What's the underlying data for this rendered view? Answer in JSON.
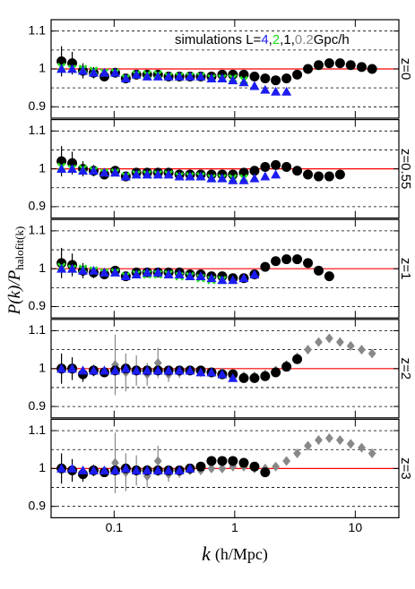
{
  "figure": {
    "xlabel": {
      "symbol": "k",
      "unit": "(h/Mpc)"
    },
    "ylabel": {
      "main": "P(k)/P",
      "sub": "halofit(k)"
    },
    "xlim": [
      0.03,
      23
    ],
    "xscale": "log",
    "xticks": [
      0.1,
      1,
      10
    ],
    "ylim": [
      0.87,
      1.13
    ],
    "yticks": [
      0.9,
      1,
      1.1
    ],
    "grid_lines": [
      0.9,
      0.95,
      1.05,
      1.1
    ],
    "reference": 1,
    "reference_color": "#ff0000",
    "legend": {
      "prefix": "simulations  L=",
      "separator": ",",
      "suffix": "Gpc/h",
      "entries": [
        {
          "name": "4",
          "color": "#1c1cf0",
          "marker": "triangle"
        },
        {
          "name": "2",
          "color": "#22dd22",
          "marker": "cross"
        },
        {
          "name": "1",
          "color": "#000000",
          "marker": "circle"
        },
        {
          "name": "0.2",
          "color": "#888888",
          "marker": "diamond"
        }
      ]
    }
  },
  "chart_data": [
    {
      "type": "scatter",
      "label": "z=0",
      "series": [
        {
          "sim": 2,
          "x": [
            0.0366,
            0.0449,
            0.0551,
            0.0676,
            0.083,
            0.102,
            0.125,
            0.153,
            0.188,
            0.231,
            0.283,
            0.348,
            0.426,
            0.523,
            0.642,
            0.788,
            0.966,
            1.19,
            1.46,
            1.79,
            2.19,
            2.69,
            3.3,
            4.05,
            4.97,
            6.09,
            7.48,
            9.17,
            11.3,
            13.8
          ],
          "values": [
            1.02,
            1.015,
            0.995,
            0.99,
            0.98,
            0.99,
            0.975,
            0.985,
            0.985,
            0.985,
            0.98,
            0.98,
            0.98,
            0.98,
            0.98,
            0.985,
            0.985,
            0.985,
            0.98,
            0.975,
            0.97,
            0.975,
            0.985,
            1.0,
            1.01,
            1.015,
            1.015,
            1.01,
            1.005,
            1.0
          ],
          "errors": [
            0.04,
            0.03,
            0.02,
            0.015,
            0.01,
            0.01,
            null,
            null,
            null,
            null,
            null,
            null,
            null,
            null,
            null,
            null,
            null,
            null,
            null,
            null,
            null,
            null,
            null,
            null,
            null,
            null,
            null,
            null,
            null,
            null
          ]
        },
        {
          "sim": 1,
          "x": [
            0.0366,
            0.0449,
            0.0551,
            0.0676,
            0.083,
            0.102,
            0.125,
            0.153,
            0.188,
            0.231,
            0.283,
            0.348,
            0.426,
            0.523,
            0.642,
            0.788,
            0.966,
            1.19
          ],
          "values": [
            1.005,
            1.0,
            1.0,
            0.995,
            0.99,
            0.99,
            0.975,
            0.985,
            0.985,
            0.985,
            0.98,
            0.98,
            0.98,
            0.98,
            0.975,
            0.975,
            0.975,
            0.97
          ]
        },
        {
          "sim": 0,
          "x": [
            0.0366,
            0.0449,
            0.0551,
            0.0676,
            0.083,
            0.102,
            0.125,
            0.153,
            0.188,
            0.231,
            0.283,
            0.348,
            0.426,
            0.523,
            0.642,
            0.788,
            0.966,
            1.19,
            1.46,
            1.79,
            2.19,
            2.69
          ],
          "values": [
            1.0,
            1.0,
            0.995,
            0.99,
            0.99,
            0.99,
            0.975,
            0.985,
            0.98,
            0.98,
            0.98,
            0.98,
            0.98,
            0.98,
            0.975,
            0.975,
            0.97,
            0.965,
            0.955,
            0.945,
            0.94,
            0.94
          ]
        }
      ]
    },
    {
      "type": "scatter",
      "label": "z=0.55",
      "series": [
        {
          "sim": 2,
          "x": [
            0.0366,
            0.0449,
            0.0551,
            0.0676,
            0.083,
            0.102,
            0.125,
            0.153,
            0.188,
            0.231,
            0.283,
            0.348,
            0.426,
            0.523,
            0.642,
            0.788,
            0.966,
            1.19,
            1.46,
            1.79,
            2.19,
            2.69,
            3.3,
            4.05,
            4.97,
            6.09,
            7.48
          ],
          "values": [
            1.02,
            1.015,
            1.0,
            0.995,
            0.985,
            0.995,
            0.98,
            0.99,
            0.99,
            0.99,
            0.99,
            0.985,
            0.985,
            0.985,
            0.985,
            0.985,
            0.985,
            0.99,
            0.995,
            1.005,
            1.01,
            1.005,
            0.995,
            0.985,
            0.98,
            0.98,
            0.985
          ],
          "errors": [
            0.04,
            0.03,
            0.02,
            0.015,
            0.01,
            0.01,
            null,
            null,
            null,
            null,
            null,
            null,
            null,
            null,
            null,
            null,
            null,
            null,
            null,
            null,
            null,
            null,
            null,
            null,
            null,
            null,
            null
          ]
        },
        {
          "sim": 1,
          "x": [
            0.0366,
            0.0449,
            0.0551,
            0.0676,
            0.083,
            0.102,
            0.125,
            0.153,
            0.188,
            0.231,
            0.283,
            0.348,
            0.426,
            0.523,
            0.642,
            0.788,
            0.966,
            1.19
          ],
          "values": [
            1.005,
            1.0,
            1.0,
            0.995,
            0.99,
            0.99,
            0.98,
            0.985,
            0.985,
            0.985,
            0.985,
            0.98,
            0.98,
            0.98,
            0.975,
            0.975,
            0.975,
            0.975
          ]
        },
        {
          "sim": 0,
          "x": [
            0.0366,
            0.0449,
            0.0551,
            0.0676,
            0.083,
            0.102,
            0.125,
            0.153,
            0.188,
            0.231,
            0.283,
            0.348,
            0.426,
            0.523,
            0.642,
            0.788,
            0.966,
            1.19,
            1.46,
            1.79,
            2.19
          ],
          "values": [
            1.0,
            1.0,
            0.995,
            0.995,
            0.99,
            0.99,
            0.98,
            0.985,
            0.985,
            0.985,
            0.985,
            0.98,
            0.98,
            0.98,
            0.975,
            0.975,
            0.97,
            0.97,
            0.975,
            0.98,
            0.985
          ]
        }
      ]
    },
    {
      "type": "scatter",
      "label": "z=1",
      "series": [
        {
          "sim": 2,
          "x": [
            0.0366,
            0.0449,
            0.0551,
            0.0676,
            0.083,
            0.102,
            0.125,
            0.153,
            0.188,
            0.231,
            0.283,
            0.348,
            0.426,
            0.523,
            0.642,
            0.788,
            0.966,
            1.19,
            1.46,
            1.79,
            2.19,
            2.69,
            3.3,
            4.05,
            4.97,
            6.09
          ],
          "values": [
            1.015,
            1.01,
            0.995,
            0.99,
            0.985,
            0.995,
            0.98,
            0.99,
            0.99,
            0.99,
            0.99,
            0.99,
            0.985,
            0.985,
            0.98,
            0.98,
            0.975,
            0.975,
            0.985,
            1.005,
            1.02,
            1.025,
            1.025,
            1.015,
            0.995,
            0.98
          ],
          "errors": [
            0.04,
            0.03,
            0.02,
            0.015,
            0.01,
            0.01,
            null,
            null,
            null,
            null,
            null,
            null,
            null,
            null,
            null,
            null,
            null,
            null,
            null,
            null,
            null,
            null,
            null,
            null,
            null,
            null
          ]
        },
        {
          "sim": 1,
          "x": [
            0.0366,
            0.0449,
            0.0551,
            0.0676,
            0.083,
            0.102,
            0.125,
            0.153,
            0.188,
            0.231,
            0.283,
            0.348,
            0.426,
            0.523,
            0.642,
            0.788
          ],
          "values": [
            1.005,
            1.0,
            1.0,
            0.995,
            0.99,
            0.99,
            0.98,
            0.985,
            0.985,
            0.985,
            0.985,
            0.98,
            0.98,
            0.975,
            0.97,
            0.97
          ]
        },
        {
          "sim": 0,
          "x": [
            0.0366,
            0.0449,
            0.0551,
            0.0676,
            0.083,
            0.102,
            0.125,
            0.153,
            0.188,
            0.231,
            0.283,
            0.348,
            0.426,
            0.523,
            0.642,
            0.788,
            0.966,
            1.19,
            1.46
          ],
          "values": [
            1.0,
            1.0,
            0.995,
            0.995,
            0.99,
            0.99,
            0.98,
            0.985,
            0.99,
            0.99,
            0.985,
            0.985,
            0.98,
            0.98,
            0.975,
            0.97,
            0.97,
            0.975,
            0.985
          ]
        }
      ]
    },
    {
      "type": "scatter",
      "label": "z=2",
      "series": [
        {
          "sim": 3,
          "x": [
            0.102,
            0.125,
            0.153,
            0.188,
            0.231,
            0.283,
            0.348,
            0.426,
            0.523,
            0.642,
            0.788,
            0.966,
            1.19,
            1.46,
            1.79,
            2.19,
            2.69,
            3.3,
            4.05,
            4.97,
            6.09,
            7.48,
            9.17,
            11.3,
            13.8
          ],
          "values": [
            1.01,
            0.99,
            0.995,
            0.985,
            1.015,
            0.985,
            0.99,
            0.995,
            0.99,
            0.99,
            0.99,
            0.985,
            0.98,
            0.98,
            0.985,
            0.995,
            1.01,
            1.03,
            1.05,
            1.07,
            1.08,
            1.07,
            1.06,
            1.05,
            1.04
          ],
          "errors": [
            0.08,
            0.05,
            0.04,
            0.03,
            0.04,
            0.02,
            0.015,
            0.01,
            null,
            null,
            null,
            null,
            null,
            null,
            null,
            null,
            null,
            null,
            null,
            null,
            null,
            null,
            null,
            null,
            null
          ]
        },
        {
          "sim": 2,
          "x": [
            0.0366,
            0.0449,
            0.0551,
            0.0676,
            0.083,
            0.102,
            0.125,
            0.153,
            0.188,
            0.231,
            0.283,
            0.348,
            0.426,
            0.523,
            0.642,
            0.788,
            0.966,
            1.19,
            1.46,
            1.79,
            2.19,
            2.69,
            3.3
          ],
          "values": [
            1.0,
            1.0,
            0.985,
            0.995,
            0.99,
            0.995,
            1.0,
            0.995,
            0.995,
            0.995,
            0.995,
            0.995,
            0.995,
            0.995,
            0.99,
            0.985,
            0.985,
            0.975,
            0.975,
            0.98,
            0.99,
            1.005,
            1.025
          ],
          "errors": [
            0.04,
            0.03,
            0.02,
            0.015,
            0.01,
            0.01,
            null,
            null,
            null,
            null,
            null,
            null,
            null,
            null,
            null,
            null,
            null,
            null,
            null,
            null,
            null,
            null,
            null
          ]
        },
        {
          "sim": 0,
          "x": [
            0.0366,
            0.0449,
            0.0551,
            0.0676,
            0.083,
            0.102,
            0.125,
            0.153,
            0.188,
            0.231,
            0.283,
            0.348,
            0.426,
            0.523,
            0.642,
            0.788,
            0.966
          ],
          "values": [
            1.0,
            1.0,
            0.995,
            0.995,
            0.995,
            0.995,
            1.0,
            0.995,
            0.995,
            0.995,
            0.995,
            0.995,
            0.995,
            0.99,
            0.99,
            0.985,
            0.975
          ]
        }
      ]
    },
    {
      "type": "scatter",
      "label": "z=3",
      "series": [
        {
          "sim": 3,
          "x": [
            0.102,
            0.125,
            0.153,
            0.188,
            0.231,
            0.283,
            0.348,
            0.426,
            0.523,
            0.642,
            0.788,
            0.966,
            1.19,
            1.46,
            1.79,
            2.19,
            2.69,
            3.3,
            4.05,
            4.97,
            6.09,
            7.48,
            9.17,
            11.3,
            13.8
          ],
          "values": [
            1.015,
            0.99,
            0.995,
            0.98,
            1.02,
            0.985,
            0.99,
            0.995,
            0.995,
            1.0,
            1.0,
            1.005,
            1.005,
            1.0,
            1.0,
            1.005,
            1.02,
            1.04,
            1.06,
            1.075,
            1.08,
            1.075,
            1.065,
            1.055,
            1.04
          ],
          "errors": [
            0.08,
            0.05,
            0.04,
            0.03,
            0.04,
            0.02,
            0.015,
            0.01,
            null,
            null,
            null,
            null,
            null,
            null,
            null,
            null,
            null,
            null,
            null,
            null,
            null,
            null,
            null,
            null,
            null
          ]
        },
        {
          "sim": 2,
          "x": [
            0.0366,
            0.0449,
            0.0551,
            0.0676,
            0.083,
            0.102,
            0.125,
            0.153,
            0.188,
            0.231,
            0.283,
            0.348,
            0.426,
            0.523,
            0.642,
            0.788,
            0.966,
            1.19,
            1.46,
            1.79
          ],
          "values": [
            1.0,
            0.995,
            0.985,
            0.995,
            0.99,
            0.995,
            1.0,
            0.995,
            0.995,
            0.995,
            0.995,
            0.995,
            1.0,
            1.005,
            1.02,
            1.02,
            1.02,
            1.015,
            1.005,
            0.99
          ],
          "errors": [
            0.04,
            0.03,
            0.02,
            0.015,
            0.01,
            0.01,
            null,
            null,
            null,
            null,
            null,
            null,
            null,
            null,
            null,
            null,
            null,
            null,
            null,
            null
          ]
        },
        {
          "sim": 0,
          "x": [
            0.0366,
            0.0449,
            0.0551,
            0.0676,
            0.083,
            0.102,
            0.125,
            0.153,
            0.188,
            0.231,
            0.283,
            0.348,
            0.426
          ],
          "values": [
            1.0,
            1.0,
            0.995,
            0.995,
            0.995,
            0.995,
            1.0,
            0.995,
            0.995,
            0.995,
            0.995,
            0.995,
            1.0
          ]
        }
      ]
    }
  ]
}
